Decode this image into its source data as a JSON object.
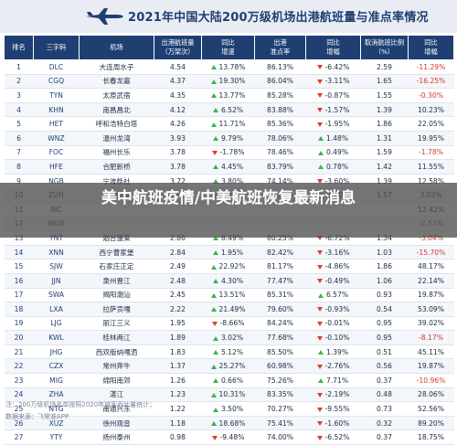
{
  "header": {
    "title": "2021年中国大陆200万级机场出港航班量与准点率情况"
  },
  "table": {
    "columns": [
      "排名",
      "三字码",
      "机场",
      "出港航班量\n（万架次）",
      "同比\n增速",
      "出港\n准点率",
      "同比\n增幅",
      "取消航班比例\n（%）",
      "同比\n增幅"
    ],
    "rows": [
      [
        "1",
        "DLC",
        "大连周水子",
        "4.54",
        "13.78%",
        "86.13%",
        "-6.42%",
        "2.59",
        "-11.29%"
      ],
      [
        "2",
        "CGQ",
        "长春龙嘉",
        "4.37",
        "19.30%",
        "86.04%",
        "-3.11%",
        "1.65",
        "-16.25%"
      ],
      [
        "3",
        "TYN",
        "太原武宿",
        "4.35",
        "13.77%",
        "85.28%",
        "-0.87%",
        "1.55",
        "-0.30%"
      ],
      [
        "4",
        "KHN",
        "南昌昌北",
        "4.12",
        "6.52%",
        "83.88%",
        "-1.57%",
        "1.39",
        "10.23%"
      ],
      [
        "5",
        "HET",
        "呼和浩特白塔",
        "4.26",
        "11.71%",
        "85.36%",
        "-1.95%",
        "1.86",
        "22.05%"
      ],
      [
        "6",
        "WNZ",
        "温州龙湾",
        "3.93",
        "9.79%",
        "78.06%",
        "1.48%",
        "1.31",
        "19.95%"
      ],
      [
        "7",
        "FOC",
        "福州长乐",
        "3.78",
        "-1.78%",
        "78.46%",
        "0.49%",
        "1.59",
        "-1.78%"
      ],
      [
        "8",
        "HFE",
        "合肥新桥",
        "3.78",
        "4.45%",
        "83.79%",
        "0.78%",
        "1.42",
        "11.55%"
      ],
      [
        "9",
        "NGB",
        "宁波栎社",
        "3.72",
        "3.80%",
        "74.14%",
        "-3.60%",
        "1.39",
        "12.58%"
      ],
      [
        "10",
        "ZUH",
        "珠海金湾",
        "3.45",
        "9.30%",
        "73.93%",
        "-5.40%",
        "1.57",
        "3.03%"
      ],
      [
        "11",
        "INC",
        "",
        "",
        "",
        "",
        "",
        "",
        "12.42%"
      ],
      [
        "12",
        "WUX",
        "",
        "",
        "",
        "",
        "",
        "",
        "-2.52%"
      ],
      [
        "13",
        "YNT",
        "烟台蓬莱",
        "2.86",
        "8.49%",
        "80.25%",
        "-6.72%",
        "1.34",
        "-3.04%"
      ],
      [
        "14",
        "XNN",
        "西宁曹家堡",
        "2.84",
        "1.95%",
        "82.42%",
        "-3.16%",
        "1.03",
        "-15.70%"
      ],
      [
        "15",
        "SJW",
        "石家庄正定",
        "2.49",
        "22.92%",
        "81.17%",
        "-4.86%",
        "1.86",
        "48.17%"
      ],
      [
        "16",
        "JJN",
        "泉州晋江",
        "2.48",
        "4.30%",
        "77.47%",
        "-0.49%",
        "1.06",
        "22.14%"
      ],
      [
        "17",
        "SWA",
        "揭阳潮汕",
        "2.45",
        "13.51%",
        "85.31%",
        "6.57%",
        "0.93",
        "19.87%"
      ],
      [
        "18",
        "LXA",
        "拉萨贡嘎",
        "2.22",
        "21.49%",
        "79.60%",
        "-0.93%",
        "0.54",
        "53.09%"
      ],
      [
        "19",
        "LJG",
        "丽江三义",
        "1.95",
        "-8.66%",
        "84.24%",
        "-0.01%",
        "0.95",
        "39.02%"
      ],
      [
        "20",
        "KWL",
        "桂林两江",
        "1.89",
        "3.02%",
        "77.68%",
        "-0.10%",
        "0.95",
        "-8.17%"
      ],
      [
        "21",
        "JHG",
        "西双版纳嘎洒",
        "1.83",
        "5.12%",
        "85.50%",
        "1.39%",
        "0.51",
        "45.11%"
      ],
      [
        "22",
        "CZX",
        "常州奔牛",
        "1.37",
        "25.27%",
        "60.98%",
        "-2.76%",
        "0.56",
        "19.87%"
      ],
      [
        "23",
        "MIG",
        "绵阳南郊",
        "1.26",
        "0.66%",
        "75.26%",
        "7.71%",
        "0.37",
        "-10.96%"
      ],
      [
        "24",
        "ZHA",
        "湛江",
        "1.23",
        "10.31%",
        "83.35%",
        "-2.19%",
        "0.48",
        "28.06%"
      ],
      [
        "25",
        "NTG",
        "南通兴东",
        "1.22",
        "3.50%",
        "70.27%",
        "-9.55%",
        "0.73",
        "52.56%"
      ],
      [
        "26",
        "XUZ",
        "徐州观音",
        "1.18",
        "18.68%",
        "75.41%",
        "-1.60%",
        "0.32",
        "89.20%"
      ],
      [
        "27",
        "YTY",
        "扬州泰州",
        "0.98",
        "-9.48%",
        "74.00%",
        "-6.52%",
        "0.37",
        "18.75%"
      ]
    ]
  },
  "overlay": {
    "text": "美中航班疫情/中美航班恢复最新消息"
  },
  "footer": {
    "note": "注：200万级机场名单按照2020年旅客吞吐量统计；",
    "source": "数据来源：飞常准APP"
  },
  "colors": {
    "header_bg": "#1f3f73",
    "up_arrow": "#39b54a",
    "down_arrow": "#e23a2d",
    "negative_text": "#d23a2e"
  }
}
